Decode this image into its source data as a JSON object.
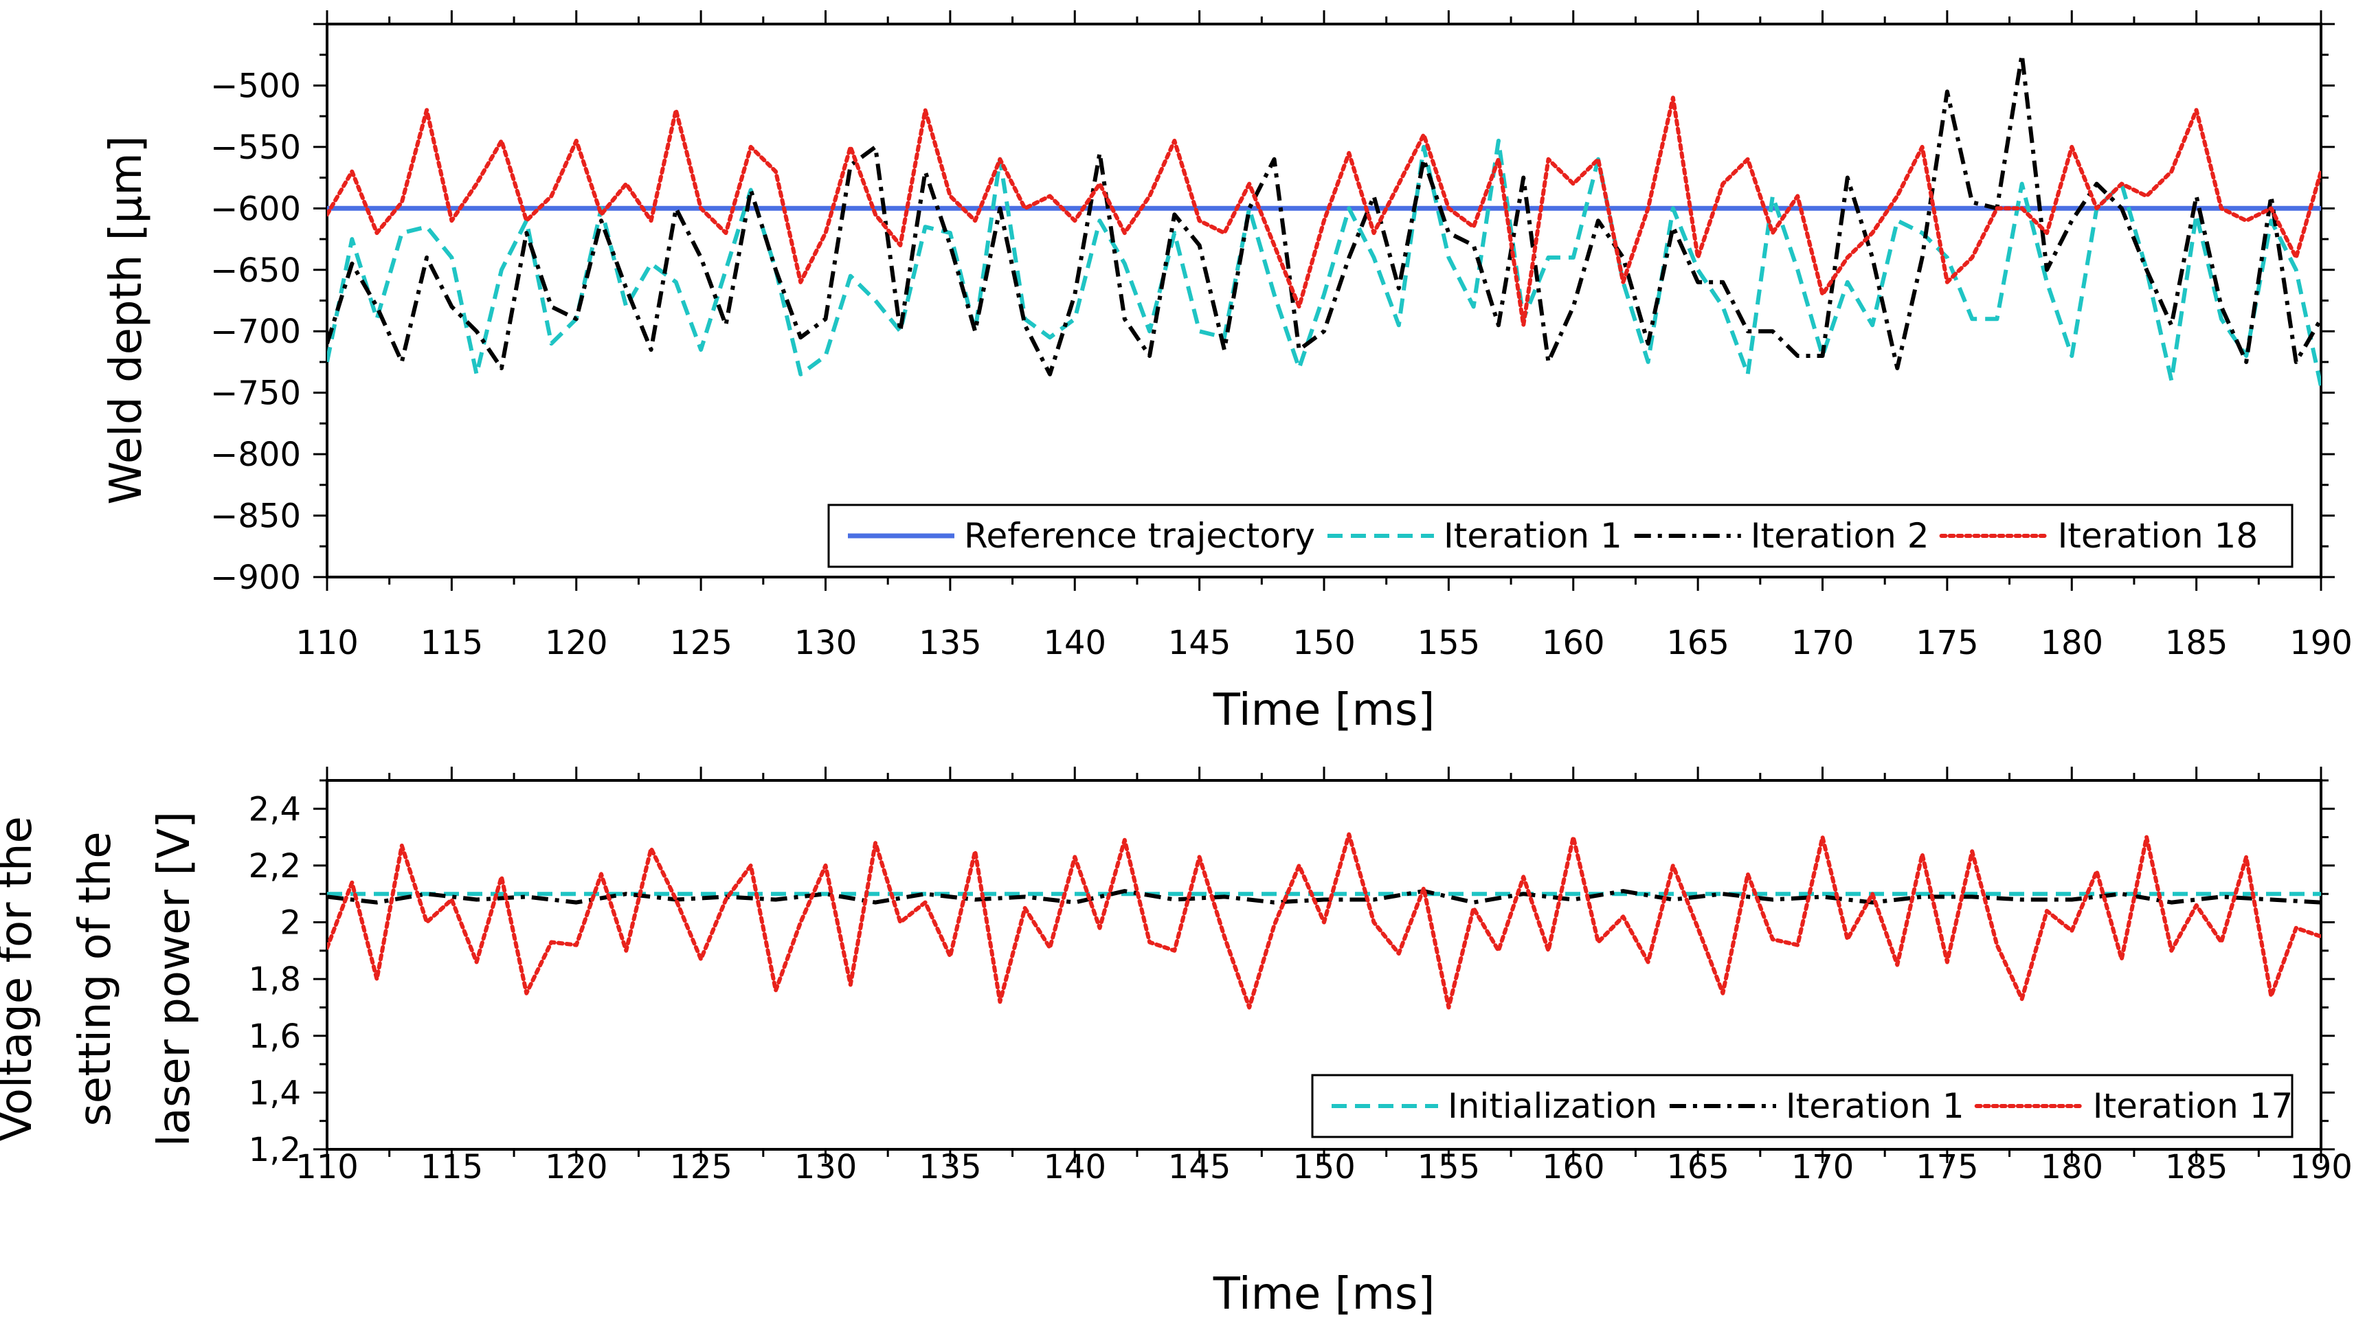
{
  "chart_data": [
    {
      "type": "line",
      "xlabel": "Time [ms]",
      "ylabel": "Weld depth [µm]",
      "xlim": [
        110,
        190
      ],
      "ylim": [
        -900,
        -450
      ],
      "xticks": [
        110,
        115,
        120,
        125,
        130,
        135,
        140,
        145,
        150,
        155,
        160,
        165,
        170,
        175,
        180,
        185,
        190
      ],
      "xtick_labels": [
        "110",
        "115",
        "120",
        "125",
        "130",
        "135",
        "140",
        "145",
        "150",
        "155",
        "160",
        "165",
        "170",
        "175",
        "180",
        "185",
        "190"
      ],
      "yticks": [
        -500,
        -550,
        -600,
        -650,
        -700,
        -750,
        -800,
        -850,
        -900
      ],
      "ytick_labels": [
        "−500",
        "−550",
        "−600",
        "−650",
        "−700",
        "−750",
        "−800",
        "−850",
        "−900"
      ],
      "grid": false,
      "legend_position": "bottom-right",
      "series": [
        {
          "name": "Reference trajectory",
          "color": "#4a6fe3",
          "style": "solid",
          "x": [
            110,
            190
          ],
          "y": [
            -600,
            -600
          ]
        },
        {
          "name": "Iteration 1",
          "color": "#1fc4c4",
          "style": "dashed",
          "x": [
            110,
            111,
            112,
            113,
            114,
            115,
            116,
            117,
            118,
            119,
            120,
            121,
            122,
            123,
            124,
            125,
            126,
            127,
            128,
            129,
            130,
            131,
            132,
            133,
            134,
            135,
            136,
            137,
            138,
            139,
            140,
            141,
            142,
            143,
            144,
            145,
            146,
            147,
            148,
            149,
            150,
            151,
            152,
            153,
            154,
            155,
            156,
            157,
            158,
            159,
            160,
            161,
            162,
            163,
            164,
            165,
            166,
            167,
            168,
            169,
            170,
            171,
            172,
            173,
            174,
            175,
            176,
            177,
            178,
            179,
            180,
            181,
            182,
            183,
            184,
            185,
            186,
            187,
            188,
            189,
            190
          ],
          "y": [
            -725,
            -625,
            -690,
            -620,
            -615,
            -640,
            -735,
            -650,
            -610,
            -710,
            -690,
            -600,
            -680,
            -645,
            -660,
            -715,
            -650,
            -585,
            -650,
            -735,
            -720,
            -655,
            -675,
            -700,
            -615,
            -620,
            -700,
            -560,
            -690,
            -705,
            -690,
            -610,
            -645,
            -700,
            -620,
            -700,
            -705,
            -600,
            -670,
            -730,
            -670,
            -600,
            -640,
            -695,
            -550,
            -640,
            -680,
            -545,
            -690,
            -640,
            -640,
            -560,
            -660,
            -725,
            -600,
            -650,
            -680,
            -735,
            -590,
            -650,
            -720,
            -660,
            -695,
            -610,
            -620,
            -640,
            -690,
            -690,
            -580,
            -660,
            -720,
            -600,
            -580,
            -650,
            -740,
            -605,
            -690,
            -720,
            -610,
            -650,
            -745
          ]
        },
        {
          "name": "Iteration 2",
          "color": "#000000",
          "style": "dash-dot",
          "x": [
            110,
            111,
            112,
            113,
            114,
            115,
            116,
            117,
            118,
            119,
            120,
            121,
            122,
            123,
            124,
            125,
            126,
            127,
            128,
            129,
            130,
            131,
            132,
            133,
            134,
            135,
            136,
            137,
            138,
            139,
            140,
            141,
            142,
            143,
            144,
            145,
            146,
            147,
            148,
            149,
            150,
            151,
            152,
            153,
            154,
            155,
            156,
            157,
            158,
            159,
            160,
            161,
            162,
            163,
            164,
            165,
            166,
            167,
            168,
            169,
            170,
            171,
            172,
            173,
            174,
            175,
            176,
            177,
            178,
            179,
            180,
            181,
            182,
            183,
            184,
            185,
            186,
            187,
            188,
            189,
            190
          ],
          "y": [
            -710,
            -645,
            -680,
            -725,
            -640,
            -680,
            -700,
            -730,
            -620,
            -680,
            -690,
            -610,
            -665,
            -715,
            -600,
            -640,
            -695,
            -585,
            -650,
            -705,
            -690,
            -565,
            -550,
            -700,
            -570,
            -630,
            -700,
            -600,
            -695,
            -735,
            -670,
            -555,
            -690,
            -720,
            -605,
            -630,
            -715,
            -600,
            -560,
            -715,
            -700,
            -640,
            -590,
            -665,
            -560,
            -620,
            -630,
            -695,
            -575,
            -725,
            -680,
            -610,
            -640,
            -710,
            -615,
            -660,
            -660,
            -700,
            -700,
            -720,
            -720,
            -575,
            -640,
            -730,
            -640,
            -505,
            -595,
            -600,
            -475,
            -650,
            -610,
            -580,
            -600,
            -650,
            -695,
            -590,
            -680,
            -725,
            -590,
            -725,
            -690
          ]
        },
        {
          "name": "Iteration 18",
          "color": "#e8221c",
          "style": "dotted",
          "x": [
            110,
            111,
            112,
            113,
            114,
            115,
            116,
            117,
            118,
            119,
            120,
            121,
            122,
            123,
            124,
            125,
            126,
            127,
            128,
            129,
            130,
            131,
            132,
            133,
            134,
            135,
            136,
            137,
            138,
            139,
            140,
            141,
            142,
            143,
            144,
            145,
            146,
            147,
            148,
            149,
            150,
            151,
            152,
            153,
            154,
            155,
            156,
            157,
            158,
            159,
            160,
            161,
            162,
            163,
            164,
            165,
            166,
            167,
            168,
            169,
            170,
            171,
            172,
            173,
            174,
            175,
            176,
            177,
            178,
            179,
            180,
            181,
            182,
            183,
            184,
            185,
            186,
            187,
            188,
            189,
            190
          ],
          "y": [
            -605,
            -570,
            -620,
            -595,
            -520,
            -610,
            -580,
            -545,
            -610,
            -590,
            -545,
            -605,
            -580,
            -610,
            -520,
            -600,
            -620,
            -550,
            -570,
            -660,
            -620,
            -550,
            -605,
            -630,
            -520,
            -590,
            -610,
            -560,
            -600,
            -590,
            -610,
            -580,
            -620,
            -590,
            -545,
            -610,
            -620,
            -580,
            -630,
            -680,
            -610,
            -555,
            -620,
            -580,
            -540,
            -600,
            -615,
            -560,
            -695,
            -560,
            -580,
            -560,
            -660,
            -600,
            -510,
            -640,
            -580,
            -560,
            -620,
            -590,
            -670,
            -640,
            -620,
            -590,
            -550,
            -660,
            -640,
            -600,
            -600,
            -620,
            -550,
            -600,
            -580,
            -590,
            -570,
            -520,
            -600,
            -610,
            -600,
            -640,
            -570
          ]
        }
      ]
    },
    {
      "type": "line",
      "xlabel": "Time [ms]",
      "ylabel_lines": [
        "Voltage for the",
        "setting of the",
        "laser power [V]"
      ],
      "xlim": [
        110,
        190
      ],
      "ylim": [
        1.2,
        2.5
      ],
      "xticks": [
        110,
        115,
        120,
        125,
        130,
        135,
        140,
        145,
        150,
        155,
        160,
        165,
        170,
        175,
        180,
        185,
        190
      ],
      "xtick_labels": [
        "110",
        "115",
        "120",
        "125",
        "130",
        "135",
        "140",
        "145",
        "150",
        "155",
        "160",
        "165",
        "170",
        "175",
        "180",
        "185",
        "190"
      ],
      "yticks": [
        1.2,
        1.4,
        1.6,
        1.8,
        2.0,
        2.2,
        2.4
      ],
      "ytick_labels": [
        "1,2",
        "1,4",
        "1,6",
        "1,8",
        "2",
        "2,2",
        "2,4"
      ],
      "grid": false,
      "legend_position": "bottom-right",
      "series": [
        {
          "name": "Initialization",
          "color": "#1fc4c4",
          "style": "dashed",
          "x": [
            110,
            190
          ],
          "y": [
            2.1,
            2.1
          ]
        },
        {
          "name": "Iteration 1",
          "color": "#000000",
          "style": "dash-dot",
          "x": [
            110,
            112,
            114,
            116,
            118,
            120,
            122,
            124,
            126,
            128,
            130,
            132,
            134,
            136,
            138,
            140,
            142,
            144,
            146,
            148,
            150,
            152,
            154,
            156,
            158,
            160,
            162,
            164,
            166,
            168,
            170,
            172,
            174,
            176,
            178,
            180,
            182,
            184,
            186,
            188,
            190
          ],
          "y": [
            2.09,
            2.07,
            2.1,
            2.08,
            2.09,
            2.07,
            2.1,
            2.08,
            2.09,
            2.08,
            2.1,
            2.07,
            2.1,
            2.08,
            2.09,
            2.07,
            2.11,
            2.08,
            2.09,
            2.07,
            2.08,
            2.08,
            2.11,
            2.07,
            2.1,
            2.08,
            2.11,
            2.08,
            2.1,
            2.08,
            2.09,
            2.07,
            2.09,
            2.09,
            2.08,
            2.08,
            2.1,
            2.07,
            2.09,
            2.08,
            2.07
          ]
        },
        {
          "name": "Iteration 17",
          "color": "#e8221c",
          "style": "dotted",
          "x": [
            110,
            111,
            112,
            113,
            114,
            115,
            116,
            117,
            118,
            119,
            120,
            121,
            122,
            123,
            124,
            125,
            126,
            127,
            128,
            129,
            130,
            131,
            132,
            133,
            134,
            135,
            136,
            137,
            138,
            139,
            140,
            141,
            142,
            143,
            144,
            145,
            146,
            147,
            148,
            149,
            150,
            151,
            152,
            153,
            154,
            155,
            156,
            157,
            158,
            159,
            160,
            161,
            162,
            163,
            164,
            165,
            166,
            167,
            168,
            169,
            170,
            171,
            172,
            173,
            174,
            175,
            176,
            177,
            178,
            179,
            180,
            181,
            182,
            183,
            184,
            185,
            186,
            187,
            188,
            189,
            190
          ],
          "y": [
            1.91,
            2.14,
            1.8,
            2.27,
            2.0,
            2.08,
            1.86,
            2.16,
            1.75,
            1.93,
            1.92,
            2.17,
            1.9,
            2.26,
            2.08,
            1.87,
            2.08,
            2.2,
            1.76,
            2.0,
            2.2,
            1.78,
            2.28,
            2.0,
            2.07,
            1.88,
            2.25,
            1.72,
            2.05,
            1.91,
            2.23,
            1.98,
            2.29,
            1.93,
            1.9,
            2.23,
            1.95,
            1.7,
            1.99,
            2.2,
            2.0,
            2.31,
            2.0,
            1.89,
            2.12,
            1.7,
            2.05,
            1.9,
            2.16,
            1.9,
            2.3,
            1.93,
            2.02,
            1.86,
            2.2,
            1.98,
            1.75,
            2.17,
            1.94,
            1.92,
            2.3,
            1.94,
            2.1,
            1.85,
            2.24,
            1.86,
            2.25,
            1.92,
            1.73,
            2.04,
            1.97,
            2.18,
            1.87,
            2.3,
            1.9,
            2.06,
            1.93,
            2.23,
            1.74,
            1.98,
            1.95
          ]
        }
      ]
    }
  ]
}
